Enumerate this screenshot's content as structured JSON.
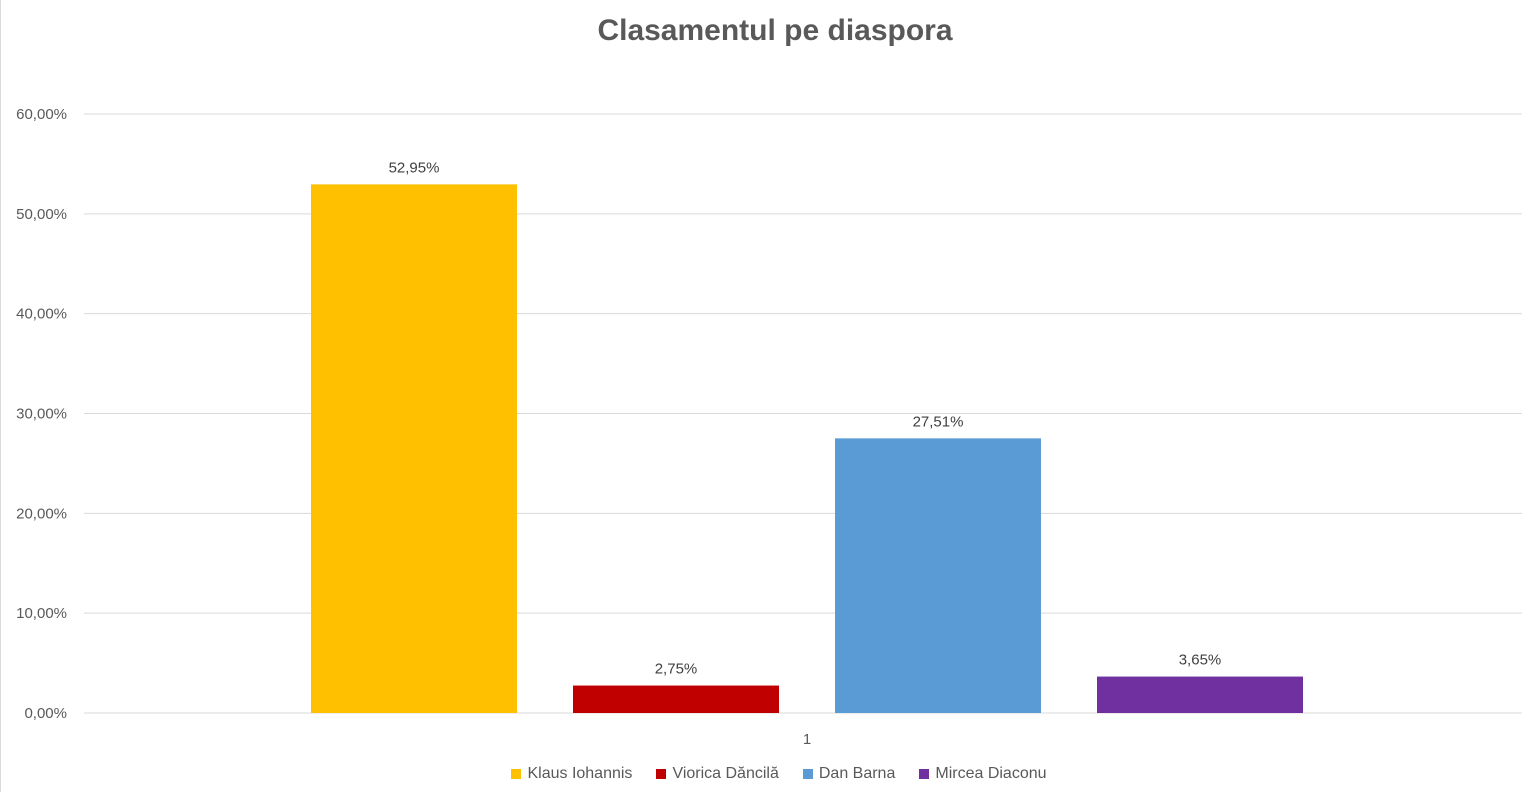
{
  "chart_data": {
    "type": "bar",
    "title": "Clasamentul pe diaspora",
    "categories": [
      "1"
    ],
    "series": [
      {
        "name": "Klaus Iohannis",
        "values": [
          52.95
        ],
        "label": "52,95%",
        "color": "#FFC000"
      },
      {
        "name": "Viorica Dăncilă",
        "values": [
          2.75
        ],
        "label": "2,75%",
        "color": "#C00000"
      },
      {
        "name": "Dan Barna",
        "values": [
          27.51
        ],
        "label": "27,51%",
        "color": "#5B9BD5"
      },
      {
        "name": "Mircea Diaconu",
        "values": [
          3.65
        ],
        "label": "3,65%",
        "color": "#7030A0"
      }
    ],
    "yticks": [
      "0,00%",
      "10,00%",
      "20,00%",
      "30,00%",
      "40,00%",
      "50,00%",
      "60,00%"
    ],
    "ylim": [
      0,
      60
    ],
    "xlabel": "",
    "ylabel": "",
    "grid": true,
    "legend_position": "bottom"
  }
}
